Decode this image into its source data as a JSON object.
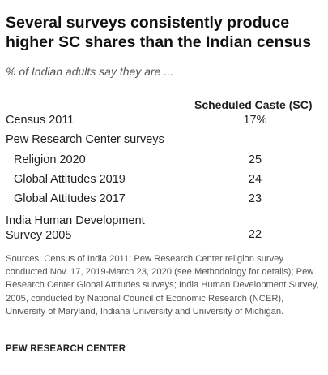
{
  "title": "Several surveys consistently produce higher SC shares than the Indian census",
  "subtitle": "% of Indian adults say they are ...",
  "chart_data": {
    "type": "table",
    "column_header": "Scheduled Caste (SC)",
    "rows": [
      {
        "label": "Census 2011",
        "value": "17%"
      },
      {
        "label": "Pew Research Center surveys",
        "value": ""
      },
      {
        "label": "Religion 2020",
        "value": "25"
      },
      {
        "label": "Global Attitudes 2019",
        "value": "24"
      },
      {
        "label": "Global Attitudes 2017",
        "value": "23"
      },
      {
        "label": "India Human Development Survey 2005",
        "value": "22"
      }
    ]
  },
  "source": "Sources: Census of India 2011; Pew Research Center religion survey conducted Nov. 17, 2019-March 23, 2020 (see Methodology for details); Pew Research Center Global Attitudes surveys; India Human Development Survey, 2005, conducted by National Council of Economic Research (NCER), University of Maryland, Indiana University and University of Michigan.",
  "footer": "PEW RESEARCH CENTER"
}
